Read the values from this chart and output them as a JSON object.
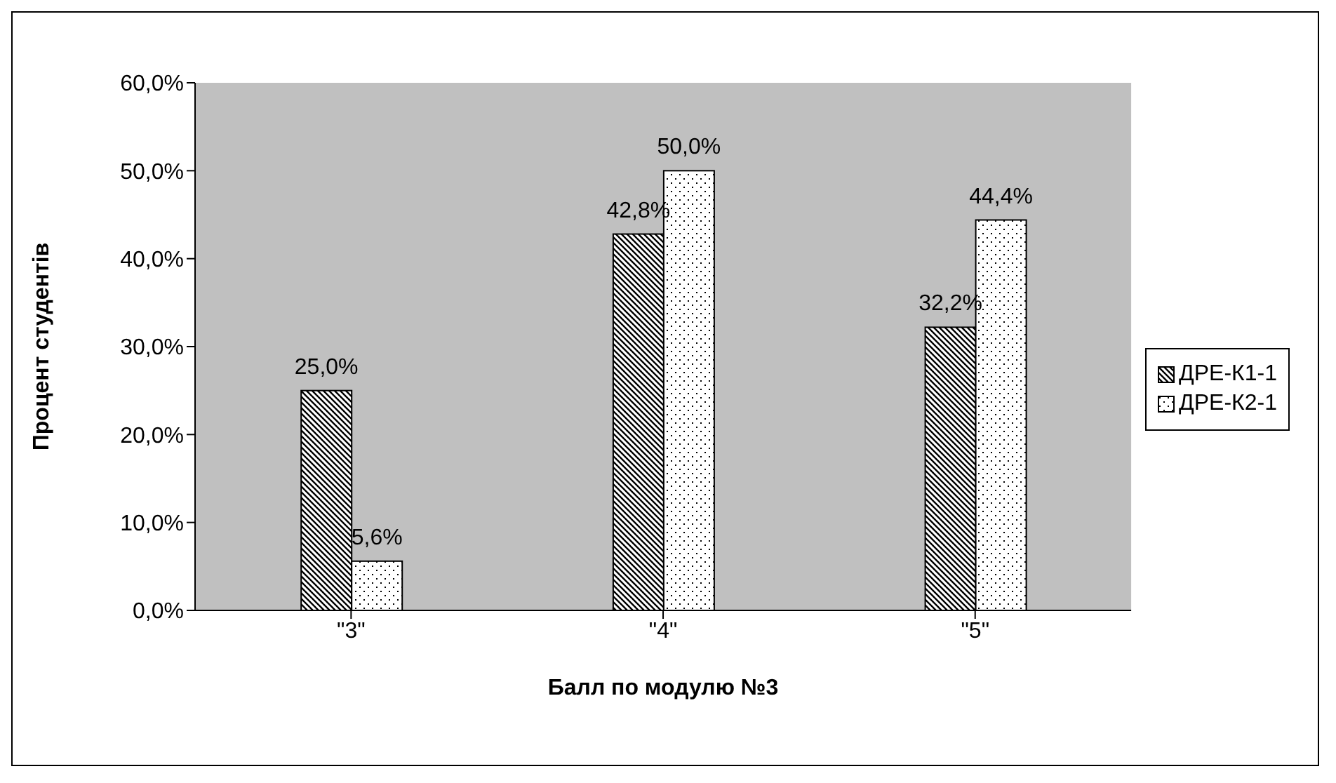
{
  "chart_data": {
    "type": "bar",
    "xlabel": "Балл по модулю №3",
    "ylabel": "Процент студентів",
    "categories": [
      "\"3\"",
      "\"4\"",
      "\"5\""
    ],
    "series": [
      {
        "name": "ДРЕ-К1-1",
        "color": "#000000",
        "values": [
          25.0,
          42.8,
          32.2
        ],
        "value_labels": [
          "25,0%",
          "42,8%",
          "32,2%"
        ]
      },
      {
        "name": "ДРЕ-К2-1",
        "color": "#ffffff",
        "values": [
          5.6,
          50.0,
          44.4
        ],
        "value_labels": [
          "5,6%",
          "50,0%",
          "44,4%"
        ]
      }
    ],
    "ylim": [
      0,
      60
    ],
    "yticks": [
      {
        "value": 0,
        "label": "0,0%"
      },
      {
        "value": 10,
        "label": "10,0%"
      },
      {
        "value": 20,
        "label": "20,0%"
      },
      {
        "value": 30,
        "label": "30,0%"
      },
      {
        "value": 40,
        "label": "40,0%"
      },
      {
        "value": 50,
        "label": "50,0%"
      },
      {
        "value": 60,
        "label": "60,0%"
      }
    ],
    "legend": "right"
  }
}
